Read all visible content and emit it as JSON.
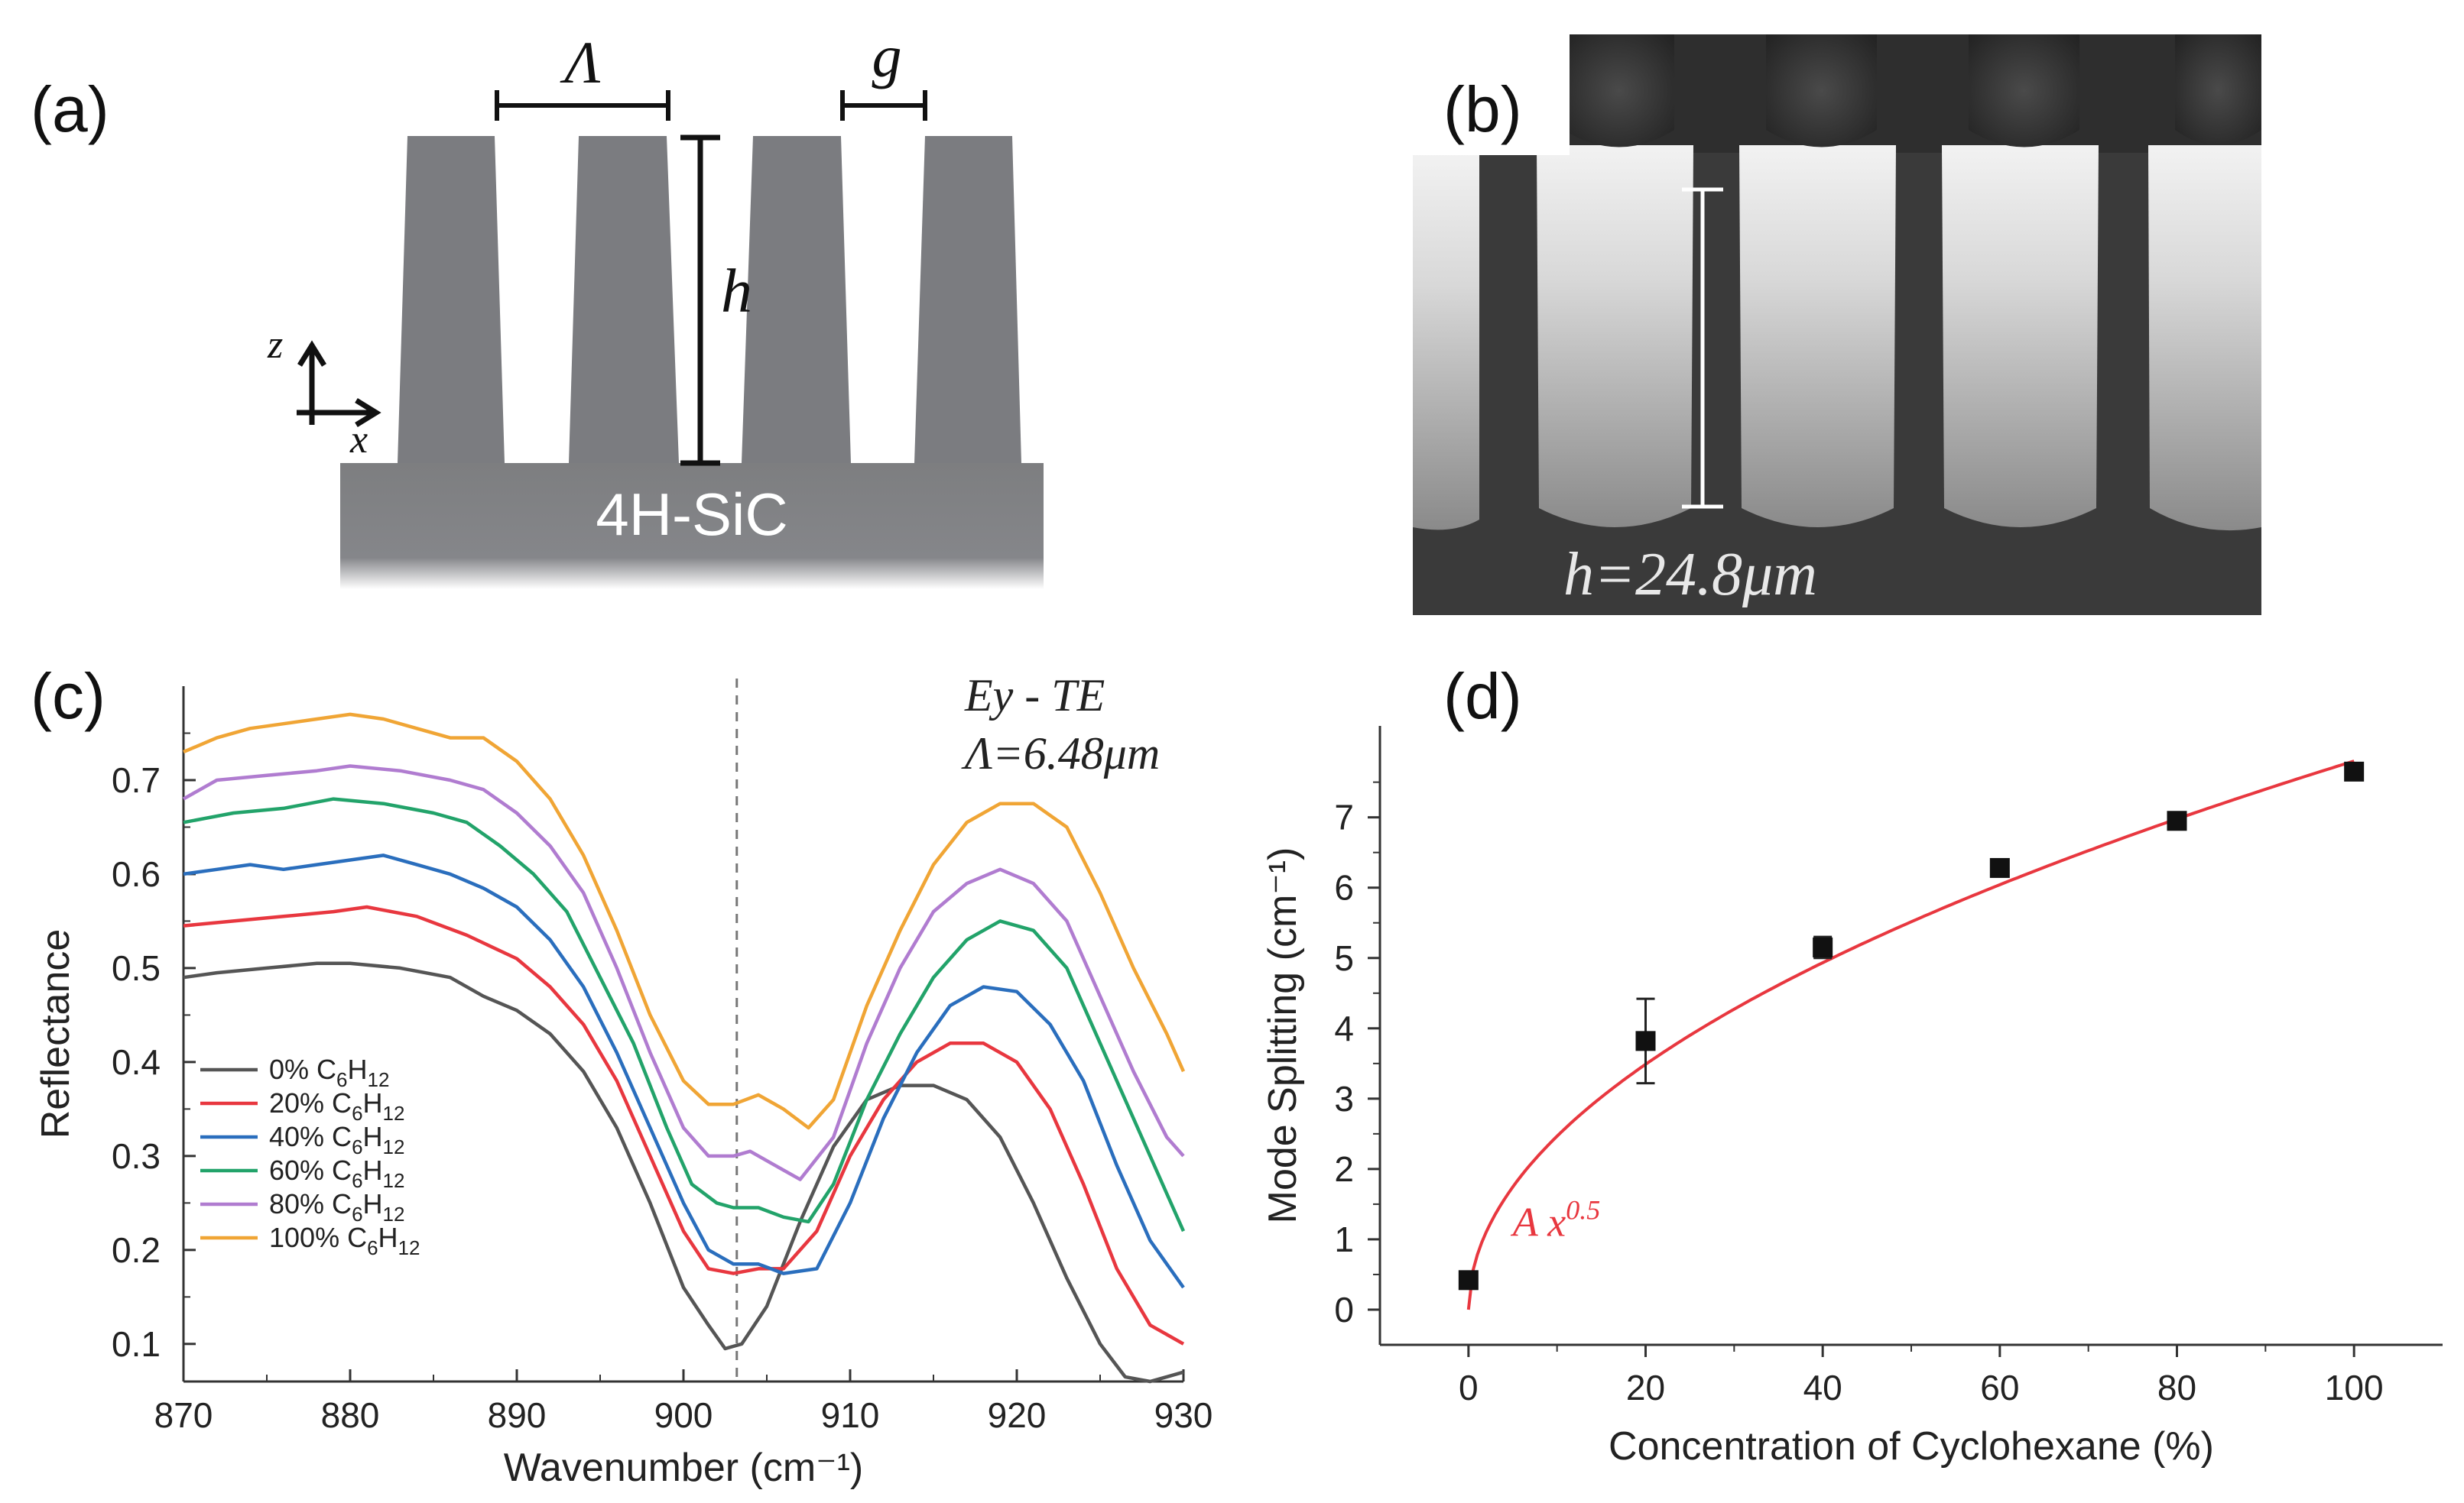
{
  "panels": {
    "a": {
      "label": "(a)",
      "period_symbol": "Λ",
      "gap_symbol": "g",
      "height_symbol": "h",
      "axis_z": "z",
      "axis_x": "x",
      "substrate": "4H-SiC"
    },
    "b": {
      "label": "(b)",
      "height_annotation": "h=24.8μm"
    },
    "c": {
      "label": "(c)"
    },
    "d": {
      "label": "(d)"
    }
  },
  "chart_data": [
    {
      "id": "c",
      "type": "line",
      "xlabel": "Wavenumber (cm⁻¹)",
      "ylabel": "Reflectance",
      "xlim": [
        870,
        930
      ],
      "ylim": [
        0.06,
        0.8
      ],
      "xticks": [
        870,
        880,
        890,
        900,
        910,
        920,
        930
      ],
      "yticks": [
        0.1,
        0.2,
        0.3,
        0.4,
        0.5,
        0.6,
        0.7
      ],
      "annotation_line1": "Ey - TE",
      "annotation_line2": "Λ=6.48μm",
      "dashed_line_x": 903.2,
      "series": [
        {
          "name": "0% C6H12",
          "color": "#555555",
          "x": [
            870,
            872,
            875,
            878,
            880,
            883,
            886,
            888,
            890,
            892,
            894,
            896,
            898,
            900,
            901.5,
            902.5,
            903.5,
            905,
            907,
            909,
            911,
            913,
            915,
            917,
            919,
            921,
            923,
            925,
            926.5,
            928,
            929,
            930
          ],
          "y": [
            0.49,
            0.495,
            0.5,
            0.505,
            0.505,
            0.5,
            0.49,
            0.47,
            0.455,
            0.43,
            0.39,
            0.33,
            0.25,
            0.16,
            0.12,
            0.095,
            0.1,
            0.14,
            0.23,
            0.31,
            0.36,
            0.375,
            0.375,
            0.36,
            0.32,
            0.25,
            0.17,
            0.1,
            0.065,
            0.06,
            0.065,
            0.07
          ]
        },
        {
          "name": "20% C6H12",
          "color": "#e8373f",
          "x": [
            870,
            873,
            876,
            879,
            881,
            884,
            887,
            890,
            892,
            894,
            896,
            898,
            900,
            901.5,
            903,
            904.5,
            906,
            908,
            910,
            912,
            914,
            916,
            918,
            920,
            922,
            924,
            926,
            928,
            930
          ],
          "y": [
            0.545,
            0.55,
            0.555,
            0.56,
            0.565,
            0.555,
            0.535,
            0.51,
            0.48,
            0.44,
            0.38,
            0.3,
            0.22,
            0.18,
            0.175,
            0.18,
            0.18,
            0.22,
            0.3,
            0.36,
            0.4,
            0.42,
            0.42,
            0.4,
            0.35,
            0.27,
            0.18,
            0.12,
            0.1
          ]
        },
        {
          "name": "40% C6H12",
          "color": "#2a6ebd",
          "x": [
            870,
            872,
            874,
            876,
            878,
            880,
            882,
            884,
            886,
            888,
            890,
            892,
            894,
            896,
            898,
            900,
            901.5,
            903,
            904.5,
            906,
            908,
            910,
            912,
            914,
            916,
            918,
            920,
            922,
            924,
            926,
            928,
            930
          ],
          "y": [
            0.6,
            0.605,
            0.61,
            0.605,
            0.61,
            0.615,
            0.62,
            0.61,
            0.6,
            0.585,
            0.565,
            0.53,
            0.48,
            0.41,
            0.33,
            0.25,
            0.2,
            0.185,
            0.185,
            0.175,
            0.18,
            0.25,
            0.34,
            0.41,
            0.46,
            0.48,
            0.475,
            0.44,
            0.38,
            0.29,
            0.21,
            0.16
          ]
        },
        {
          "name": "60% C6H12",
          "color": "#22a36a",
          "x": [
            870,
            873,
            876,
            879,
            882,
            885,
            887,
            889,
            891,
            893,
            895,
            897,
            899,
            900.5,
            902,
            903,
            904.5,
            906,
            907.5,
            909,
            911,
            913,
            915,
            917,
            919,
            921,
            923,
            925,
            927,
            929,
            930
          ],
          "y": [
            0.655,
            0.665,
            0.67,
            0.68,
            0.675,
            0.665,
            0.655,
            0.63,
            0.6,
            0.56,
            0.49,
            0.42,
            0.33,
            0.27,
            0.25,
            0.245,
            0.245,
            0.235,
            0.23,
            0.27,
            0.36,
            0.43,
            0.49,
            0.53,
            0.55,
            0.54,
            0.5,
            0.42,
            0.34,
            0.26,
            0.22
          ]
        },
        {
          "name": "80% C6H12",
          "color": "#b07cd0",
          "x": [
            870,
            872,
            875,
            878,
            880,
            883,
            886,
            888,
            890,
            892,
            894,
            896,
            898,
            900,
            901.5,
            903,
            904,
            905.5,
            907,
            909,
            911,
            913,
            915,
            917,
            919,
            921,
            923,
            925,
            927,
            929,
            930
          ],
          "y": [
            0.68,
            0.7,
            0.705,
            0.71,
            0.715,
            0.71,
            0.7,
            0.69,
            0.665,
            0.63,
            0.58,
            0.5,
            0.41,
            0.33,
            0.3,
            0.3,
            0.305,
            0.29,
            0.275,
            0.32,
            0.42,
            0.5,
            0.56,
            0.59,
            0.605,
            0.59,
            0.55,
            0.47,
            0.39,
            0.32,
            0.3
          ]
        },
        {
          "name": "100% C6H12",
          "color": "#f0a535",
          "x": [
            870,
            872,
            874,
            876,
            878,
            880,
            882,
            884,
            886,
            888,
            890,
            892,
            894,
            896,
            898,
            900,
            901.5,
            903,
            904.5,
            906,
            907.5,
            909,
            911,
            913,
            915,
            917,
            919,
            921,
            923,
            925,
            927,
            929,
            930
          ],
          "y": [
            0.73,
            0.745,
            0.755,
            0.76,
            0.765,
            0.77,
            0.765,
            0.755,
            0.745,
            0.745,
            0.72,
            0.68,
            0.62,
            0.54,
            0.45,
            0.38,
            0.355,
            0.355,
            0.365,
            0.35,
            0.33,
            0.36,
            0.46,
            0.54,
            0.61,
            0.655,
            0.675,
            0.675,
            0.65,
            0.58,
            0.5,
            0.43,
            0.39
          ]
        }
      ]
    },
    {
      "id": "d",
      "type": "scatter",
      "xlabel": "Concentration of Cyclohexane (%)",
      "ylabel": "Mode Splitting (cm⁻¹)",
      "xlim": [
        -10,
        110
      ],
      "ylim": [
        -0.5,
        8.3
      ],
      "xticks": [
        0,
        20,
        40,
        60,
        80,
        100
      ],
      "yticks": [
        0,
        1,
        2,
        3,
        4,
        5,
        6,
        7
      ],
      "points": [
        {
          "x": 0,
          "y": 0.42,
          "err": 0.06
        },
        {
          "x": 20,
          "y": 3.82,
          "err": 0.6
        },
        {
          "x": 40,
          "y": 5.15,
          "err": 0.15
        },
        {
          "x": 60,
          "y": 6.28,
          "err": 0.05
        },
        {
          "x": 80,
          "y": 6.95,
          "err": 0.06
        },
        {
          "x": 100,
          "y": 7.65,
          "err": 0.06
        }
      ],
      "fit": {
        "label": "A x",
        "exponent_label": "0.5",
        "A": 0.78,
        "exponent": 0.5,
        "color": "#e8373f"
      }
    }
  ]
}
